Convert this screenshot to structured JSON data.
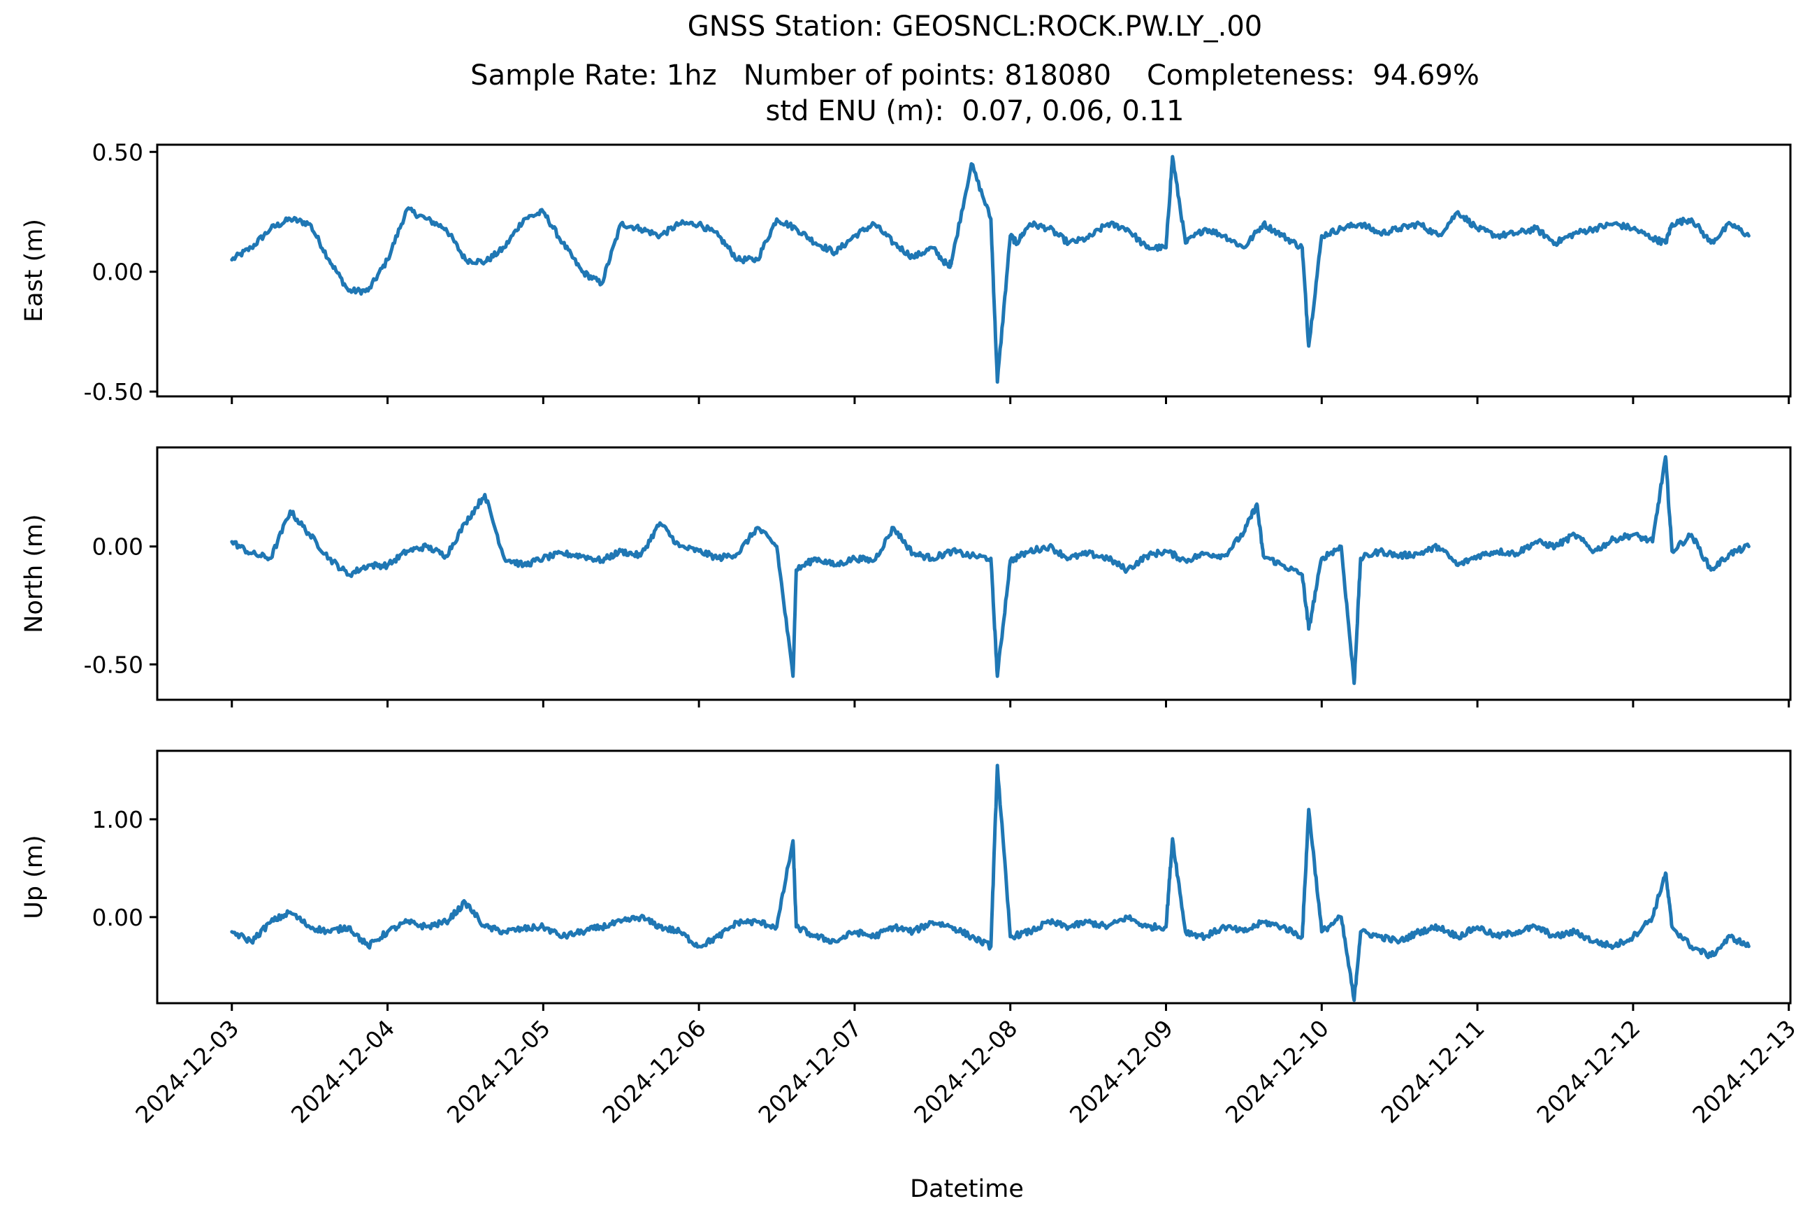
{
  "title": {
    "line1": "GNSS Station: GEOSNCL:ROCK.PW.LY_.00",
    "line2": "Sample Rate: 1hz   Number of points: 818080    Completeness:  94.69%",
    "line3": "std ENU (m):  0.07, 0.06, 0.11"
  },
  "chart_data": {
    "type": "line",
    "xlabel": "Datetime",
    "x_ticks": [
      "2024-12-03",
      "2024-12-04",
      "2024-12-05",
      "2024-12-06",
      "2024-12-07",
      "2024-12-08",
      "2024-12-09",
      "2024-12-10",
      "2024-12-11",
      "2024-12-12",
      "2024-12-13"
    ],
    "xlim": [
      "2024-12-02T12:30",
      "2024-12-13T00:15"
    ],
    "data_range": [
      "2024-12-03T00:00",
      "2024-12-12T17:50"
    ],
    "line_color": "#1f77b4",
    "panels": [
      {
        "ylabel": "East (m)",
        "ylim": [
          -0.52,
          0.53
        ],
        "y_ticks": [
          0.5,
          0.0,
          -0.5
        ],
        "y_tick_labels": [
          "0.50",
          "0.00",
          "-0.50"
        ],
        "x": [
          "2024-12-03T00:00",
          "2024-12-03T03:00",
          "2024-12-03T06:00",
          "2024-12-03T09:00",
          "2024-12-03T12:00",
          "2024-12-03T15:00",
          "2024-12-03T18:00",
          "2024-12-03T21:00",
          "2024-12-04T00:00",
          "2024-12-04T03:00",
          "2024-12-04T06:00",
          "2024-12-04T09:00",
          "2024-12-04T12:00",
          "2024-12-04T15:00",
          "2024-12-04T18:00",
          "2024-12-04T21:00",
          "2024-12-05T00:00",
          "2024-12-05T03:00",
          "2024-12-05T06:00",
          "2024-12-05T09:00",
          "2024-12-05T12:00",
          "2024-12-05T15:00",
          "2024-12-05T18:00",
          "2024-12-05T21:00",
          "2024-12-06T00:00",
          "2024-12-06T03:00",
          "2024-12-06T06:00",
          "2024-12-06T09:00",
          "2024-12-06T12:00",
          "2024-12-06T15:00",
          "2024-12-06T18:00",
          "2024-12-06T21:00",
          "2024-12-07T00:00",
          "2024-12-07T03:00",
          "2024-12-07T06:00",
          "2024-12-07T09:00",
          "2024-12-07T12:00",
          "2024-12-07T14:30",
          "2024-12-07T15:00",
          "2024-12-07T18:00",
          "2024-12-07T21:00",
          "2024-12-07T22:00",
          "2024-12-08T00:00",
          "2024-12-08T01:00",
          "2024-12-08T03:00",
          "2024-12-08T06:00",
          "2024-12-08T09:00",
          "2024-12-08T12:00",
          "2024-12-08T15:00",
          "2024-12-08T18:00",
          "2024-12-08T21:00",
          "2024-12-09T00:00",
          "2024-12-09T01:00",
          "2024-12-09T03:00",
          "2024-12-09T06:00",
          "2024-12-09T09:00",
          "2024-12-09T12:00",
          "2024-12-09T15:00",
          "2024-12-09T18:00",
          "2024-12-09T21:00",
          "2024-12-09T22:00",
          "2024-12-10T00:00",
          "2024-12-10T03:00",
          "2024-12-10T06:00",
          "2024-12-10T09:00",
          "2024-12-10T12:00",
          "2024-12-10T15:00",
          "2024-12-10T18:00",
          "2024-12-10T21:00",
          "2024-12-11T00:00",
          "2024-12-11T03:00",
          "2024-12-11T06:00",
          "2024-12-11T09:00",
          "2024-12-11T12:00",
          "2024-12-11T15:00",
          "2024-12-11T18:00",
          "2024-12-11T21:00",
          "2024-12-12T00:00",
          "2024-12-12T03:00",
          "2024-12-12T05:00",
          "2024-12-12T06:00",
          "2024-12-12T09:00",
          "2024-12-12T12:00",
          "2024-12-12T15:00",
          "2024-12-12T17:50"
        ],
        "values": [
          0.05,
          0.1,
          0.18,
          0.22,
          0.2,
          0.05,
          -0.08,
          -0.08,
          0.05,
          0.26,
          0.22,
          0.18,
          0.05,
          0.04,
          0.1,
          0.22,
          0.25,
          0.12,
          0.0,
          -0.05,
          0.2,
          0.18,
          0.15,
          0.2,
          0.2,
          0.15,
          0.05,
          0.05,
          0.22,
          0.18,
          0.12,
          0.08,
          0.15,
          0.2,
          0.12,
          0.06,
          0.1,
          0.02,
          0.05,
          0.45,
          0.22,
          -0.46,
          0.15,
          0.12,
          0.2,
          0.18,
          0.12,
          0.14,
          0.2,
          0.18,
          0.1,
          0.1,
          0.48,
          0.12,
          0.18,
          0.15,
          0.1,
          0.2,
          0.15,
          0.1,
          -0.31,
          0.15,
          0.18,
          0.2,
          0.16,
          0.18,
          0.2,
          0.15,
          0.25,
          0.18,
          0.15,
          0.16,
          0.18,
          0.12,
          0.16,
          0.18,
          0.2,
          0.18,
          0.14,
          0.12,
          0.2,
          0.22,
          0.12,
          0.2,
          0.15
        ]
      },
      {
        "ylabel": "North (m)",
        "ylim": [
          -0.65,
          0.42
        ],
        "y_ticks": [
          0.0,
          -0.5
        ],
        "y_tick_labels": [
          "0.00",
          "-0.50"
        ],
        "x": [
          "2024-12-03T00:00",
          "2024-12-03T03:00",
          "2024-12-03T06:00",
          "2024-12-03T09:00",
          "2024-12-03T12:00",
          "2024-12-03T15:00",
          "2024-12-03T18:00",
          "2024-12-03T21:00",
          "2024-12-04T00:00",
          "2024-12-04T03:00",
          "2024-12-04T06:00",
          "2024-12-04T09:00",
          "2024-12-04T12:00",
          "2024-12-04T15:00",
          "2024-12-04T18:00",
          "2024-12-04T21:00",
          "2024-12-05T00:00",
          "2024-12-05T03:00",
          "2024-12-05T06:00",
          "2024-12-05T09:00",
          "2024-12-05T12:00",
          "2024-12-05T15:00",
          "2024-12-05T18:00",
          "2024-12-05T21:00",
          "2024-12-06T00:00",
          "2024-12-06T03:00",
          "2024-12-06T06:00",
          "2024-12-06T09:00",
          "2024-12-06T12:00",
          "2024-12-06T14:30",
          "2024-12-06T15:00",
          "2024-12-06T18:00",
          "2024-12-06T21:00",
          "2024-12-07T00:00",
          "2024-12-07T03:00",
          "2024-12-07T06:00",
          "2024-12-07T09:00",
          "2024-12-07T12:00",
          "2024-12-07T15:00",
          "2024-12-07T18:00",
          "2024-12-07T21:00",
          "2024-12-07T22:00",
          "2024-12-08T00:00",
          "2024-12-08T03:00",
          "2024-12-08T06:00",
          "2024-12-08T09:00",
          "2024-12-08T12:00",
          "2024-12-08T15:00",
          "2024-12-08T18:00",
          "2024-12-08T21:00",
          "2024-12-09T00:00",
          "2024-12-09T03:00",
          "2024-12-09T06:00",
          "2024-12-09T09:00",
          "2024-12-09T12:00",
          "2024-12-09T14:00",
          "2024-12-09T15:00",
          "2024-12-09T18:00",
          "2024-12-09T21:00",
          "2024-12-09T22:00",
          "2024-12-10T00:00",
          "2024-12-10T03:00",
          "2024-12-10T05:00",
          "2024-12-10T06:00",
          "2024-12-10T09:00",
          "2024-12-10T12:00",
          "2024-12-10T15:00",
          "2024-12-10T18:00",
          "2024-12-10T21:00",
          "2024-12-11T00:00",
          "2024-12-11T03:00",
          "2024-12-11T06:00",
          "2024-12-11T09:00",
          "2024-12-11T12:00",
          "2024-12-11T15:00",
          "2024-12-11T18:00",
          "2024-12-11T21:00",
          "2024-12-12T00:00",
          "2024-12-12T03:00",
          "2024-12-12T05:00",
          "2024-12-12T06:00",
          "2024-12-12T09:00",
          "2024-12-12T12:00",
          "2024-12-12T15:00",
          "2024-12-12T17:50"
        ],
        "values": [
          0.02,
          -0.03,
          -0.05,
          0.15,
          0.05,
          -0.05,
          -0.12,
          -0.08,
          -0.08,
          -0.02,
          0.0,
          -0.04,
          0.1,
          0.22,
          -0.05,
          -0.08,
          -0.05,
          -0.03,
          -0.04,
          -0.06,
          -0.02,
          -0.04,
          0.1,
          0.0,
          -0.02,
          -0.05,
          -0.03,
          0.08,
          0.0,
          -0.55,
          -0.1,
          -0.05,
          -0.08,
          -0.05,
          -0.06,
          0.08,
          -0.03,
          -0.05,
          -0.02,
          -0.04,
          -0.05,
          -0.55,
          -0.06,
          -0.02,
          0.0,
          -0.05,
          -0.03,
          -0.05,
          -0.1,
          -0.04,
          -0.02,
          -0.06,
          -0.03,
          -0.04,
          0.06,
          0.18,
          -0.04,
          -0.08,
          -0.12,
          -0.35,
          -0.05,
          0.0,
          -0.58,
          -0.05,
          -0.02,
          -0.04,
          -0.03,
          0.0,
          -0.08,
          -0.04,
          -0.02,
          -0.03,
          0.02,
          0.0,
          0.05,
          -0.02,
          0.03,
          0.05,
          0.02,
          0.38,
          -0.02,
          0.05,
          -0.1,
          -0.03,
          0.0
        ]
      },
      {
        "ylabel": "Up (m)",
        "ylim": [
          -0.88,
          1.7
        ],
        "y_ticks": [
          1.0,
          0.0
        ],
        "y_tick_labels": [
          "1.00",
          "0.00"
        ],
        "x": [
          "2024-12-03T00:00",
          "2024-12-03T03:00",
          "2024-12-03T06:00",
          "2024-12-03T09:00",
          "2024-12-03T12:00",
          "2024-12-03T15:00",
          "2024-12-03T18:00",
          "2024-12-03T21:00",
          "2024-12-04T00:00",
          "2024-12-04T03:00",
          "2024-12-04T06:00",
          "2024-12-04T09:00",
          "2024-12-04T12:00",
          "2024-12-04T15:00",
          "2024-12-04T18:00",
          "2024-12-04T21:00",
          "2024-12-05T00:00",
          "2024-12-05T03:00",
          "2024-12-05T06:00",
          "2024-12-05T09:00",
          "2024-12-05T12:00",
          "2024-12-05T15:00",
          "2024-12-05T18:00",
          "2024-12-05T21:00",
          "2024-12-06T00:00",
          "2024-12-06T03:00",
          "2024-12-06T06:00",
          "2024-12-06T09:00",
          "2024-12-06T12:00",
          "2024-12-06T14:30",
          "2024-12-06T15:00",
          "2024-12-06T18:00",
          "2024-12-06T21:00",
          "2024-12-07T00:00",
          "2024-12-07T03:00",
          "2024-12-07T06:00",
          "2024-12-07T09:00",
          "2024-12-07T12:00",
          "2024-12-07T15:00",
          "2024-12-07T18:00",
          "2024-12-07T21:00",
          "2024-12-07T22:00",
          "2024-12-08T00:00",
          "2024-12-08T03:00",
          "2024-12-08T06:00",
          "2024-12-08T09:00",
          "2024-12-08T12:00",
          "2024-12-08T15:00",
          "2024-12-08T18:00",
          "2024-12-08T21:00",
          "2024-12-09T00:00",
          "2024-12-09T01:00",
          "2024-12-09T03:00",
          "2024-12-09T06:00",
          "2024-12-09T09:00",
          "2024-12-09T12:00",
          "2024-12-09T15:00",
          "2024-12-09T18:00",
          "2024-12-09T21:00",
          "2024-12-09T22:00",
          "2024-12-10T00:00",
          "2024-12-10T03:00",
          "2024-12-10T05:00",
          "2024-12-10T06:00",
          "2024-12-10T09:00",
          "2024-12-10T12:00",
          "2024-12-10T15:00",
          "2024-12-10T18:00",
          "2024-12-10T21:00",
          "2024-12-11T00:00",
          "2024-12-11T03:00",
          "2024-12-11T06:00",
          "2024-12-11T09:00",
          "2024-12-11T12:00",
          "2024-12-11T15:00",
          "2024-12-11T18:00",
          "2024-12-11T21:00",
          "2024-12-12T00:00",
          "2024-12-12T03:00",
          "2024-12-12T05:00",
          "2024-12-12T06:00",
          "2024-12-12T09:00",
          "2024-12-12T12:00",
          "2024-12-12T15:00",
          "2024-12-12T17:50"
        ],
        "values": [
          -0.15,
          -0.25,
          -0.05,
          0.05,
          -0.1,
          -0.15,
          -0.1,
          -0.3,
          -0.15,
          -0.05,
          -0.1,
          -0.05,
          0.15,
          -0.1,
          -0.15,
          -0.12,
          -0.1,
          -0.2,
          -0.15,
          -0.1,
          -0.05,
          0.0,
          -0.1,
          -0.15,
          -0.3,
          -0.2,
          -0.05,
          -0.05,
          -0.1,
          0.78,
          -0.1,
          -0.2,
          -0.25,
          -0.15,
          -0.2,
          -0.1,
          -0.15,
          -0.05,
          -0.1,
          -0.2,
          -0.3,
          1.55,
          -0.2,
          -0.15,
          -0.05,
          -0.1,
          -0.05,
          -0.1,
          0.0,
          -0.1,
          -0.1,
          0.8,
          -0.15,
          -0.2,
          -0.1,
          -0.15,
          -0.05,
          -0.1,
          -0.2,
          1.1,
          -0.15,
          0.0,
          -0.85,
          -0.15,
          -0.2,
          -0.25,
          -0.15,
          -0.1,
          -0.2,
          -0.1,
          -0.2,
          -0.15,
          -0.1,
          -0.2,
          -0.15,
          -0.25,
          -0.3,
          -0.2,
          0.0,
          0.45,
          -0.1,
          -0.3,
          -0.4,
          -0.2,
          -0.3
        ]
      }
    ]
  }
}
